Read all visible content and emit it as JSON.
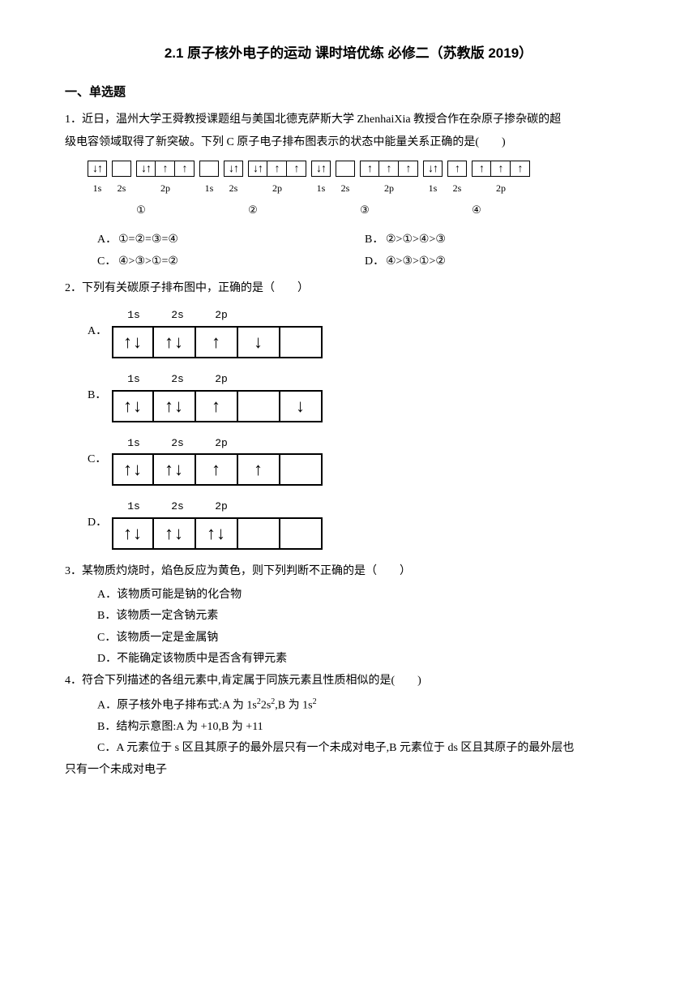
{
  "title": "2.1 原子核外电子的运动 课时培优练 必修二（苏教版 2019）",
  "section_header": "一、单选题",
  "q1": {
    "stem1": "1．近日，温州大学王舜教授课题组与美国北德克萨斯大学 ZhenhaiXia 教授合作在杂原子掺杂碳的超",
    "stem2": "级电容领域取得了新突破。下列 C 原子电子排布图表示的状态中能量关系正确的是(　　)",
    "diagrams": [
      {
        "circled": "①",
        "orbitals": [
          {
            "label": "1s",
            "boxes": [
              "↓↑"
            ]
          },
          {
            "label": "2s",
            "boxes": [
              ""
            ]
          },
          {
            "label": "2p",
            "boxes": [
              "↓↑",
              "↑",
              "↑"
            ]
          }
        ]
      },
      {
        "circled": "②",
        "orbitals": [
          {
            "label": "1s",
            "boxes": [
              ""
            ]
          },
          {
            "label": "2s",
            "boxes": [
              "↓↑"
            ]
          },
          {
            "label": "2p",
            "boxes": [
              "↓↑",
              "↑",
              "↑"
            ]
          }
        ]
      },
      {
        "circled": "③",
        "orbitals": [
          {
            "label": "1s",
            "boxes": [
              "↓↑"
            ]
          },
          {
            "label": "2s",
            "boxes": [
              ""
            ]
          },
          {
            "label": "2p",
            "boxes": [
              "↑",
              "↑",
              "↑"
            ]
          }
        ]
      },
      {
        "circled": "④",
        "orbitals": [
          {
            "label": "1s",
            "boxes": [
              "↓↑"
            ]
          },
          {
            "label": "2s",
            "boxes": [
              "↑"
            ]
          },
          {
            "label": "2p",
            "boxes": [
              "↑",
              "↑",
              "↑"
            ]
          }
        ]
      }
    ],
    "opts": {
      "A": "①=②=③=④",
      "B": "②>①>④>③",
      "C": "④>③>①=②",
      "D": "④>③>①>②"
    }
  },
  "q2": {
    "stem": "2．下列有关碳原子排布图中，正确的是（　　）",
    "options": [
      {
        "letter": "A．",
        "labels": [
          "1s",
          "2s",
          "2p",
          "",
          ""
        ],
        "widths": [
          54,
          54,
          54,
          54,
          54
        ],
        "boxes": [
          "↑↓",
          "↑↓",
          "↑",
          "↓",
          ""
        ]
      },
      {
        "letter": "B．",
        "labels": [
          "1s",
          "2s",
          "2p",
          "",
          ""
        ],
        "widths": [
          54,
          54,
          54,
          54,
          54
        ],
        "boxes": [
          "↑↓",
          "↑↓",
          "↑",
          "",
          "↓"
        ]
      },
      {
        "letter": "C．",
        "labels": [
          "1s",
          "2s",
          "2p",
          "",
          ""
        ],
        "widths": [
          54,
          54,
          54,
          54,
          54
        ],
        "boxes": [
          "↑↓",
          "↑↓",
          "↑",
          "↑",
          ""
        ]
      },
      {
        "letter": "D．",
        "labels": [
          "1s",
          "2s",
          "2p",
          "",
          ""
        ],
        "widths": [
          54,
          54,
          54,
          54,
          54
        ],
        "boxes": [
          "↑↓",
          "↑↓",
          "↑↓",
          "",
          ""
        ]
      }
    ]
  },
  "q3": {
    "stem": "3．某物质灼烧时，焰色反应为黄色，则下列判断不正确的是（　　）",
    "opts": {
      "A": "该物质可能是钠的化合物",
      "B": "该物质一定含钠元素",
      "C": "该物质一定是金属钠",
      "D": "不能确定该物质中是否含有钾元素"
    }
  },
  "q4": {
    "stem": "4．符合下列描述的各组元素中,肯定属于同族元素且性质相似的是(　　)",
    "opts": {
      "A_pre": "原子核外电子排布式:A 为 1s",
      "A_mid1": "2s",
      "A_mid2": ",B 为 1s",
      "B": "结构示意图:A 为 +10,B 为 +11",
      "C1": "A 元素位于 s 区且其原子的最外层只有一个未成对电子,B 元素位于 ds 区且其原子的最外层也",
      "C2": "只有一个未成对电子"
    }
  }
}
